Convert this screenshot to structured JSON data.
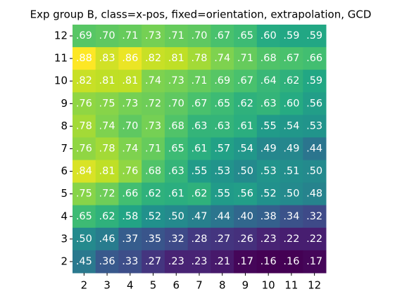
{
  "chart_data": {
    "type": "heatmap",
    "title": "Exp group B, class=x-pos, fixed=orientation, extrapolation, GCD",
    "colormap": "viridis",
    "x": [
      2,
      3,
      4,
      5,
      6,
      7,
      8,
      9,
      10,
      11,
      12
    ],
    "y": [
      12,
      11,
      10,
      9,
      8,
      7,
      6,
      5,
      4,
      3,
      2
    ],
    "values": [
      [
        0.69,
        0.7,
        0.71,
        0.73,
        0.71,
        0.7,
        0.67,
        0.65,
        0.6,
        0.59,
        0.59
      ],
      [
        0.88,
        0.83,
        0.86,
        0.82,
        0.81,
        0.78,
        0.74,
        0.71,
        0.68,
        0.67,
        0.66
      ],
      [
        0.82,
        0.81,
        0.81,
        0.74,
        0.73,
        0.71,
        0.69,
        0.67,
        0.64,
        0.62,
        0.59
      ],
      [
        0.76,
        0.75,
        0.73,
        0.72,
        0.7,
        0.67,
        0.65,
        0.62,
        0.63,
        0.6,
        0.56
      ],
      [
        0.78,
        0.74,
        0.7,
        0.73,
        0.68,
        0.63,
        0.63,
        0.61,
        0.55,
        0.54,
        0.53
      ],
      [
        0.76,
        0.78,
        0.74,
        0.71,
        0.65,
        0.61,
        0.57,
        0.54,
        0.49,
        0.49,
        0.44
      ],
      [
        0.84,
        0.81,
        0.76,
        0.68,
        0.63,
        0.55,
        0.53,
        0.5,
        0.53,
        0.51,
        0.5
      ],
      [
        0.75,
        0.72,
        0.66,
        0.62,
        0.61,
        0.62,
        0.55,
        0.56,
        0.52,
        0.5,
        0.48
      ],
      [
        0.65,
        0.62,
        0.58,
        0.52,
        0.5,
        0.47,
        0.44,
        0.4,
        0.38,
        0.34,
        0.32
      ],
      [
        0.5,
        0.46,
        0.37,
        0.35,
        0.32,
        0.28,
        0.27,
        0.26,
        0.23,
        0.22,
        0.22
      ],
      [
        0.45,
        0.36,
        0.33,
        0.27,
        0.23,
        0.23,
        0.21,
        0.17,
        0.16,
        0.16,
        0.17
      ]
    ],
    "value_labels": [
      [
        ".69",
        ".70",
        ".71",
        ".73",
        ".71",
        ".70",
        ".67",
        ".65",
        ".60",
        ".59",
        ".59"
      ],
      [
        ".88",
        ".83",
        ".86",
        ".82",
        ".81",
        ".78",
        ".74",
        ".71",
        ".68",
        ".67",
        ".66"
      ],
      [
        ".82",
        ".81",
        ".81",
        ".74",
        ".73",
        ".71",
        ".69",
        ".67",
        ".64",
        ".62",
        ".59"
      ],
      [
        ".76",
        ".75",
        ".73",
        ".72",
        ".70",
        ".67",
        ".65",
        ".62",
        ".63",
        ".60",
        ".56"
      ],
      [
        ".78",
        ".74",
        ".70",
        ".73",
        ".68",
        ".63",
        ".63",
        ".61",
        ".55",
        ".54",
        ".53"
      ],
      [
        ".76",
        ".78",
        ".74",
        ".71",
        ".65",
        ".61",
        ".57",
        ".54",
        ".49",
        ".49",
        ".44"
      ],
      [
        ".84",
        ".81",
        ".76",
        ".68",
        ".63",
        ".55",
        ".53",
        ".50",
        ".53",
        ".51",
        ".50"
      ],
      [
        ".75",
        ".72",
        ".66",
        ".62",
        ".61",
        ".62",
        ".55",
        ".56",
        ".52",
        ".50",
        ".48"
      ],
      [
        ".65",
        ".62",
        ".58",
        ".52",
        ".50",
        ".47",
        ".44",
        ".40",
        ".38",
        ".34",
        ".32"
      ],
      [
        ".50",
        ".46",
        ".37",
        ".35",
        ".32",
        ".28",
        ".27",
        ".26",
        ".23",
        ".22",
        ".22"
      ],
      [
        ".45",
        ".36",
        ".33",
        ".27",
        ".23",
        ".23",
        ".21",
        ".17",
        ".16",
        ".16",
        ".17"
      ]
    ]
  }
}
